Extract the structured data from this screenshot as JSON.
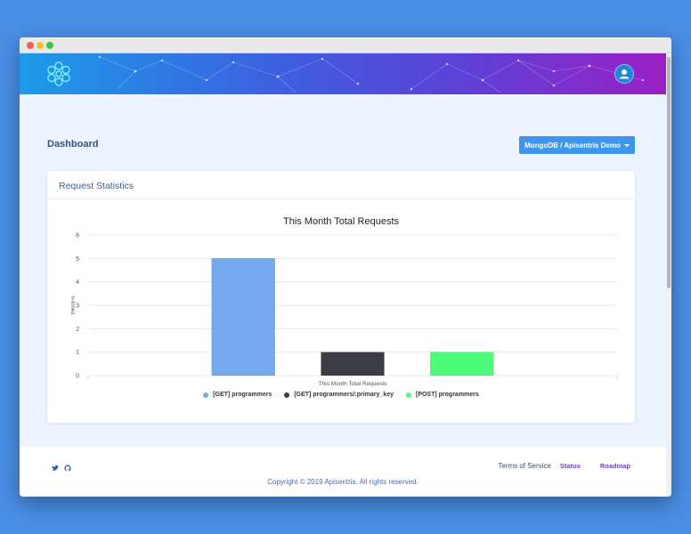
{
  "header": {
    "logo_icon": "apisentris-logo-icon",
    "avatar_icon": "user-avatar-icon"
  },
  "page": {
    "title": "Dashboard",
    "db_selector_label": "MongoDB / Apisentris Demo"
  },
  "card": {
    "title": "Request Statistics"
  },
  "chart_data": {
    "type": "bar",
    "title": "This Month Total Requests",
    "xlabel": "This Month Total Requests",
    "ylabel": "n-times",
    "ylim": [
      0,
      6
    ],
    "yticks": [
      "0",
      "1",
      "2",
      "3",
      "4",
      "5",
      "6"
    ],
    "grid": true,
    "legend_position": "bottom",
    "series": [
      {
        "name": "[GET] programmers",
        "values": [
          5
        ],
        "color": "#76a8ee"
      },
      {
        "name": "[GET] programmers/:primary_key",
        "values": [
          1
        ],
        "color": "#3d3d45"
      },
      {
        "name": "[POST] programmers",
        "values": [
          1
        ],
        "color": "#4dfc7a"
      }
    ]
  },
  "footer": {
    "terms": "Terms of Service",
    "status": "Status",
    "roadmap": "Roadmap",
    "copyright": "Copyright © 2019 Apisentris. All rights reserved.",
    "twitter_icon": "twitter-icon",
    "github_icon": "github-icon"
  }
}
